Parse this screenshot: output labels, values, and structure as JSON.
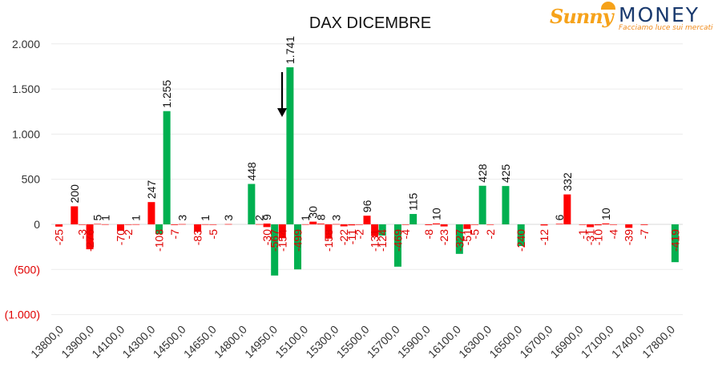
{
  "logo": {
    "brand_part1": "Sunny",
    "brand_part2": "MONEY",
    "tagline": "Facciamo luce sui mercati"
  },
  "colors": {
    "positive": "#00b050",
    "negative": "#ff0000",
    "negative_label": "#e00000",
    "axis_text": "#333333"
  },
  "chart_data": {
    "type": "bar",
    "title": "DAX DICEMBRE",
    "xlabel": "",
    "ylabel": "",
    "ylim": [
      -1000,
      2000
    ],
    "y_ticks": [
      {
        "value": 2000,
        "label": "2.000"
      },
      {
        "value": 1500,
        "label": "1.500"
      },
      {
        "value": 1000,
        "label": "1.000"
      },
      {
        "value": 500,
        "label": "500"
      },
      {
        "value": 0,
        "label": "0"
      },
      {
        "value": -500,
        "label": "(500)"
      },
      {
        "value": -1000,
        "label": "(1.000)"
      }
    ],
    "x_tick_labels": [
      "13800,0",
      "13900,0",
      "14100,0",
      "14300,0",
      "14500,0",
      "14650,0",
      "14800,0",
      "14950,0",
      "15100,0",
      "15300,0",
      "15500,0",
      "15700,0",
      "15900,0",
      "16100,0",
      "16300,0",
      "16500,0",
      "16700,0",
      "16900,0",
      "17100,0",
      "17400,0",
      "17800,0"
    ],
    "grid": true,
    "legend": "none",
    "annotation": "arrow pointing down above 15050",
    "bars": [
      {
        "x": 13800,
        "value": -25,
        "label": "-25"
      },
      {
        "x": 13900,
        "value": 200,
        "label": "200"
      },
      {
        "x": 13950,
        "value": -3,
        "label": "-3"
      },
      {
        "x": 14000,
        "value": -276,
        "label": "-276"
      },
      {
        "x": 14050,
        "value": 5,
        "label": "5"
      },
      {
        "x": 14100,
        "value": 1,
        "label": "1"
      },
      {
        "x": 14200,
        "value": -70,
        "label": "-70"
      },
      {
        "x": 14250,
        "value": -2,
        "label": "-2"
      },
      {
        "x": 14300,
        "value": 1,
        "label": "1"
      },
      {
        "x": 14400,
        "value": 247,
        "label": "247"
      },
      {
        "x": 14450,
        "value": -108,
        "label": "-108"
      },
      {
        "x": 14500,
        "value": 1255,
        "label": "1.255"
      },
      {
        "x": 14550,
        "value": -7,
        "label": "-7"
      },
      {
        "x": 14600,
        "value": 3,
        "label": "3"
      },
      {
        "x": 14700,
        "value": -83,
        "label": "-83"
      },
      {
        "x": 14750,
        "value": 1,
        "label": "1"
      },
      {
        "x": 14800,
        "value": -5,
        "label": "-5"
      },
      {
        "x": 14900,
        "value": 3,
        "label": "3"
      },
      {
        "x": 15050,
        "value": 448,
        "label": "448"
      },
      {
        "x": 15100,
        "value": 2,
        "label": "2"
      },
      {
        "x": 15150,
        "value": 9,
        "label": "9"
      },
      {
        "x": 15150,
        "value": -30,
        "label": "-30"
      },
      {
        "x": 15200,
        "value": -567,
        "label": "-567"
      },
      {
        "x": 15250,
        "value": -154,
        "label": "-154"
      },
      {
        "x": 15300,
        "value": 1741,
        "label": "1.741"
      },
      {
        "x": 15350,
        "value": -499,
        "label": "-499"
      },
      {
        "x": 15400,
        "value": 1,
        "label": "1"
      },
      {
        "x": 15450,
        "value": 30,
        "label": "30"
      },
      {
        "x": 15500,
        "value": 8,
        "label": "8"
      },
      {
        "x": 15550,
        "value": -158,
        "label": "-158"
      },
      {
        "x": 15600,
        "value": 3,
        "label": "3"
      },
      {
        "x": 15650,
        "value": -22,
        "label": "-22"
      },
      {
        "x": 15700,
        "value": -11,
        "label": "-11"
      },
      {
        "x": 15750,
        "value": -2,
        "label": "-2"
      },
      {
        "x": 15800,
        "value": 96,
        "label": "96"
      },
      {
        "x": 15850,
        "value": -131,
        "label": "-131"
      },
      {
        "x": 15900,
        "value": -124,
        "label": "-124"
      },
      {
        "x": 16000,
        "value": -469,
        "label": "-469"
      },
      {
        "x": 16050,
        "value": -4,
        "label": "-4"
      },
      {
        "x": 16100,
        "value": 115,
        "label": "115"
      },
      {
        "x": 16200,
        "value": -8,
        "label": "-8"
      },
      {
        "x": 16250,
        "value": 10,
        "label": "10"
      },
      {
        "x": 16300,
        "value": -23,
        "label": "-23"
      },
      {
        "x": 16400,
        "value": -327,
        "label": "-327"
      },
      {
        "x": 16450,
        "value": -51,
        "label": "-51"
      },
      {
        "x": 16500,
        "value": -5,
        "label": "-5"
      },
      {
        "x": 16550,
        "value": 428,
        "label": "428"
      },
      {
        "x": 16600,
        "value": -2,
        "label": "-2"
      },
      {
        "x": 16700,
        "value": 425,
        "label": "425"
      },
      {
        "x": 16800,
        "value": -240,
        "label": "-240"
      },
      {
        "x": 16950,
        "value": -12,
        "label": "-12"
      },
      {
        "x": 17050,
        "value": 6,
        "label": "6"
      },
      {
        "x": 17100,
        "value": 332,
        "label": "332"
      },
      {
        "x": 17200,
        "value": -1,
        "label": "-1"
      },
      {
        "x": 17250,
        "value": -31,
        "label": "-31"
      },
      {
        "x": 17300,
        "value": -10,
        "label": "-10"
      },
      {
        "x": 17350,
        "value": 10,
        "label": "10"
      },
      {
        "x": 17400,
        "value": -4,
        "label": "-4"
      },
      {
        "x": 17500,
        "value": -39,
        "label": "-39"
      },
      {
        "x": 17600,
        "value": -7,
        "label": "-7"
      },
      {
        "x": 17800,
        "value": -419,
        "label": "-419"
      }
    ]
  }
}
